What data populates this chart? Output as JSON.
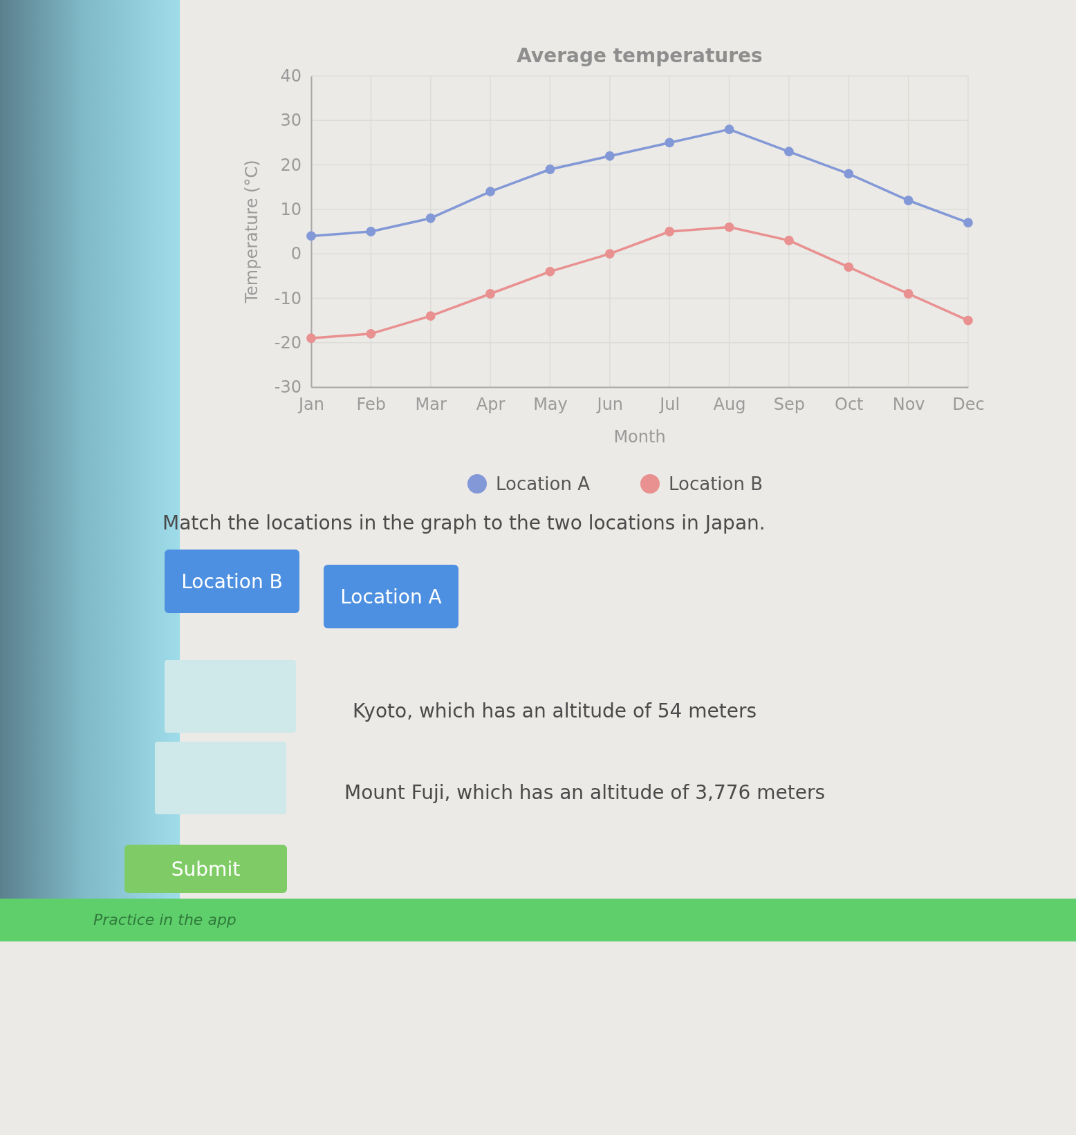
{
  "chart_data": {
    "type": "line",
    "title": "Average temperatures",
    "xlabel": "Month",
    "ylabel": "Temperature (°C)",
    "categories": [
      "Jan",
      "Feb",
      "Mar",
      "Apr",
      "May",
      "Jun",
      "Jul",
      "Aug",
      "Sep",
      "Oct",
      "Nov",
      "Dec"
    ],
    "series": [
      {
        "name": "Location A",
        "color": "#8398d6",
        "values": [
          4,
          5,
          8,
          14,
          19,
          22,
          25,
          28,
          23,
          18,
          12,
          7
        ]
      },
      {
        "name": "Location B",
        "color": "#e99090",
        "values": [
          -19,
          -18,
          -14,
          -9,
          -4,
          0,
          5,
          6,
          3,
          -3,
          -9,
          -15
        ]
      }
    ],
    "ylim": [
      -30,
      40
    ],
    "yticks": [
      -30,
      -20,
      -10,
      0,
      10,
      20,
      30,
      40
    ],
    "grid": true,
    "legend": "bottom",
    "marker": "circle",
    "line_style": "solid",
    "annotations": [
      "Match the locations in the graph to the two locations in Japan.",
      "Location B",
      "Location A",
      "Kyoto, which has an altitude of 54 meters",
      "Mount Fuji, which has an altitude of 3,776 meters",
      "Submit",
      "Practice in the app"
    ]
  }
}
